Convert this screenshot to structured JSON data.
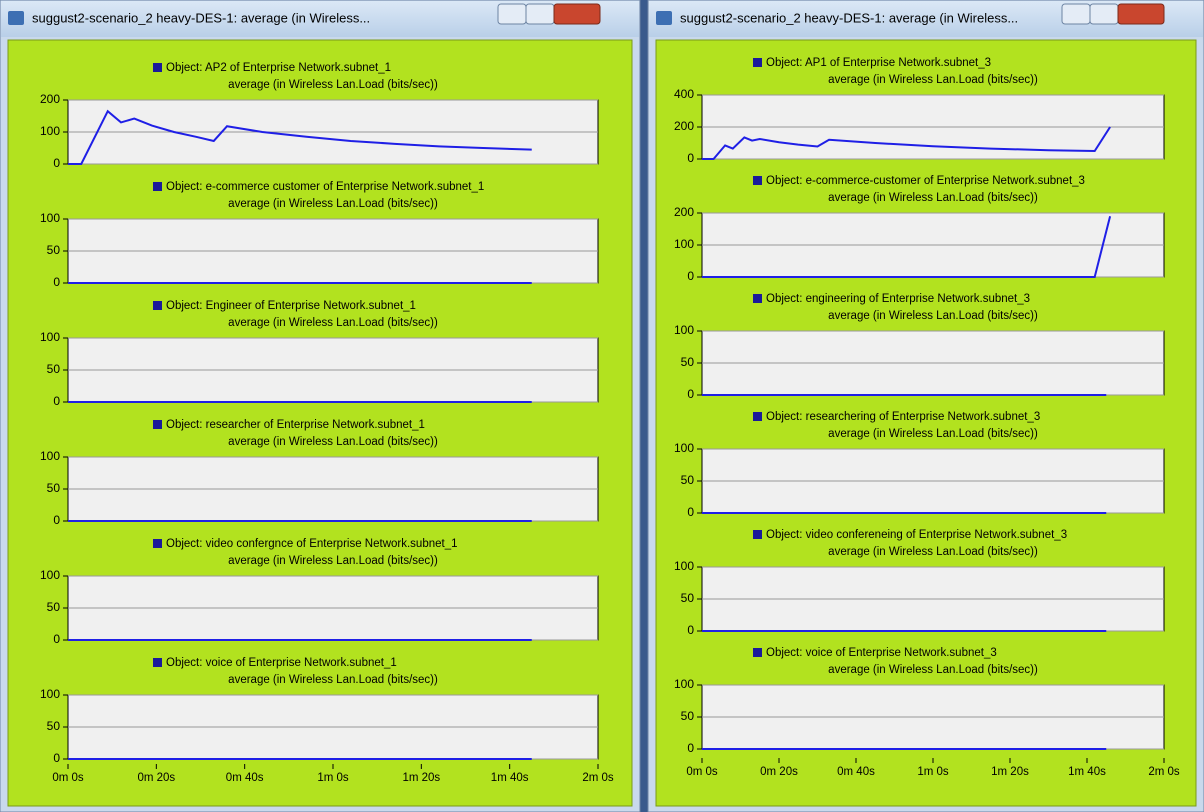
{
  "windows": [
    {
      "title": "suggust2-scenario_2 heavy-DES-1: average (in Wireless...",
      "xlim": [
        0,
        120
      ],
      "xticks": [
        {
          "value": 0,
          "label": "0m 0s"
        },
        {
          "value": 20,
          "label": "0m 20s"
        },
        {
          "value": 40,
          "label": "0m 40s"
        },
        {
          "value": 60,
          "label": "1m 0s"
        },
        {
          "value": 80,
          "label": "1m 20s"
        },
        {
          "value": 100,
          "label": "1m 40s"
        },
        {
          "value": 120,
          "label": "2m 0s"
        }
      ],
      "panels": [
        {
          "legend": "Object: AP2 of Enterprise Network.subnet_1",
          "ylabel": "average (in Wireless Lan.Load (bits/sec))",
          "ylim": [
            0,
            200
          ],
          "yticks": [
            0,
            100,
            200
          ],
          "x": [
            0,
            3,
            9,
            12,
            15,
            19,
            24,
            29,
            33,
            36,
            44,
            54,
            64,
            74,
            84,
            94,
            105
          ],
          "values": [
            0,
            0,
            165,
            130,
            142,
            120,
            100,
            85,
            72,
            118,
            100,
            85,
            72,
            63,
            55,
            50,
            45
          ]
        },
        {
          "legend": "Object: e-commerce customer of Enterprise Network.subnet_1",
          "ylabel": "average (in Wireless Lan.Load (bits/sec))",
          "ylim": [
            0,
            100
          ],
          "yticks": [
            0,
            50,
            100
          ],
          "x": [
            0,
            105
          ],
          "values": [
            0,
            0
          ]
        },
        {
          "legend": "Object: Engineer of Enterprise Network.subnet_1",
          "ylabel": "average (in Wireless Lan.Load (bits/sec))",
          "ylim": [
            0,
            100
          ],
          "yticks": [
            0,
            50,
            100
          ],
          "x": [
            0,
            105
          ],
          "values": [
            0,
            0
          ]
        },
        {
          "legend": "Object: researcher of Enterprise Network.subnet_1",
          "ylabel": "average (in Wireless Lan.Load (bits/sec))",
          "ylim": [
            0,
            100
          ],
          "yticks": [
            0,
            50,
            100
          ],
          "x": [
            0,
            105
          ],
          "values": [
            0,
            0
          ]
        },
        {
          "legend": "Object: video confergnce of Enterprise Network.subnet_1",
          "ylabel": "average (in Wireless Lan.Load (bits/sec))",
          "ylim": [
            0,
            100
          ],
          "yticks": [
            0,
            50,
            100
          ],
          "x": [
            0,
            105
          ],
          "values": [
            0,
            0
          ]
        },
        {
          "legend": "Object: voice of Enterprise Network.subnet_1",
          "ylabel": "average (in Wireless Lan.Load (bits/sec))",
          "ylim": [
            0,
            100
          ],
          "yticks": [
            0,
            50,
            100
          ],
          "x": [
            0,
            105
          ],
          "values": [
            0,
            0
          ]
        }
      ]
    },
    {
      "title": "suggust2-scenario_2 heavy-DES-1: average (in Wireless...",
      "xlim": [
        0,
        120
      ],
      "xticks": [
        {
          "value": 0,
          "label": "0m 0s"
        },
        {
          "value": 20,
          "label": "0m 20s"
        },
        {
          "value": 40,
          "label": "0m 40s"
        },
        {
          "value": 60,
          "label": "1m 0s"
        },
        {
          "value": 80,
          "label": "1m 20s"
        },
        {
          "value": 100,
          "label": "1m 40s"
        },
        {
          "value": 120,
          "label": "2m 0s"
        }
      ],
      "panels": [
        {
          "legend": "Object: AP1 of Enterprise Network.subnet_3",
          "ylabel": "average (in Wireless Lan.Load (bits/sec))",
          "ylim": [
            0,
            400
          ],
          "yticks": [
            0,
            200,
            400
          ],
          "x": [
            0,
            3,
            6,
            8,
            11,
            13,
            15,
            20,
            25,
            30,
            33,
            45,
            60,
            75,
            90,
            102,
            106
          ],
          "values": [
            0,
            0,
            85,
            65,
            135,
            115,
            125,
            105,
            90,
            78,
            120,
            100,
            80,
            65,
            55,
            50,
            200
          ]
        },
        {
          "legend": "Object: e-commerce-customer of Enterprise Network.subnet_3",
          "ylabel": "average (in Wireless Lan.Load (bits/sec))",
          "ylim": [
            0,
            200
          ],
          "yticks": [
            0,
            100,
            200
          ],
          "x": [
            0,
            102,
            106
          ],
          "values": [
            0,
            0,
            190
          ]
        },
        {
          "legend": "Object: engineering of Enterprise Network.subnet_3",
          "ylabel": "average (in Wireless Lan.Load (bits/sec))",
          "ylim": [
            0,
            100
          ],
          "yticks": [
            0,
            50,
            100
          ],
          "x": [
            0,
            105
          ],
          "values": [
            0,
            0
          ]
        },
        {
          "legend": "Object: researchering of Enterprise Network.subnet_3",
          "ylabel": "average (in Wireless Lan.Load (bits/sec))",
          "ylim": [
            0,
            100
          ],
          "yticks": [
            0,
            50,
            100
          ],
          "x": [
            0,
            105
          ],
          "values": [
            0,
            0
          ]
        },
        {
          "legend": "Object: video confereneing of Enterprise Network.subnet_3",
          "ylabel": "average (in Wireless Lan.Load (bits/sec))",
          "ylim": [
            0,
            100
          ],
          "yticks": [
            0,
            50,
            100
          ],
          "x": [
            0,
            105
          ],
          "values": [
            0,
            0
          ]
        },
        {
          "legend": "Object: voice of Enterprise Network.subnet_3",
          "ylabel": "average (in Wireless Lan.Load (bits/sec))",
          "ylim": [
            0,
            100
          ],
          "yticks": [
            0,
            50,
            100
          ],
          "x": [
            0,
            105
          ],
          "values": [
            0,
            0
          ]
        }
      ]
    }
  ]
}
